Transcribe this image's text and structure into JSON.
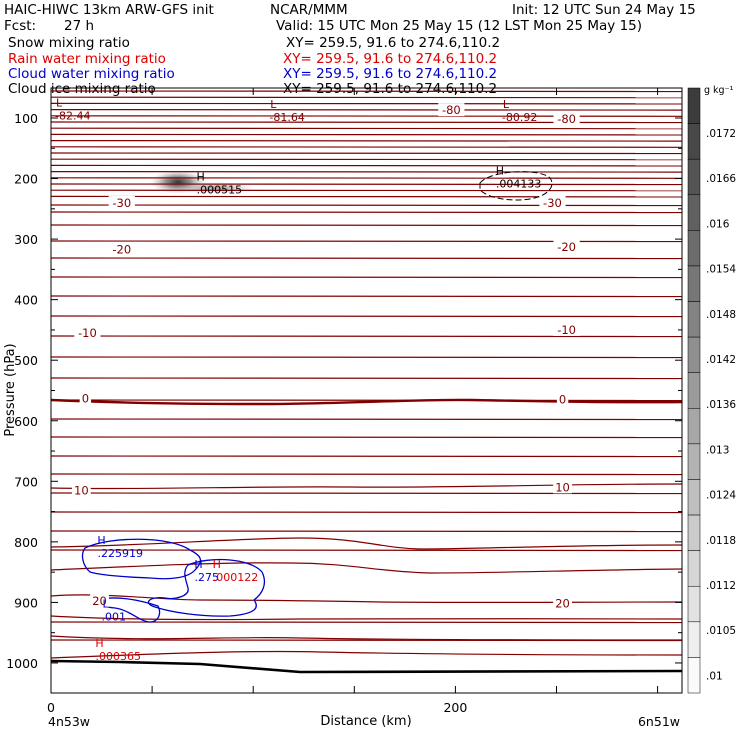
{
  "header": {
    "title": "HAIC-HIWC 13km ARW-GFS init",
    "center": "NCAR/MMM",
    "init": "Init: 12 UTC Sun 24 May 15",
    "fcst_label": "Fcst:",
    "fcst_value": "27 h",
    "valid": "Valid: 15 UTC Mon 25 May 15 (12 LST Mon 25 May 15)"
  },
  "fields": [
    {
      "name": "Snow mixing ratio",
      "xy": "XY= 259.5, 91.6 to 274.6,110.2",
      "color": "#000000"
    },
    {
      "name": "Rain water mixing ratio",
      "xy": "XY= 259.5, 91.6 to 274.6,110.2",
      "color": "#dd0000"
    },
    {
      "name": "Cloud water mixing ratio",
      "xy": "XY= 259.5, 91.6 to 274.6,110.2",
      "color": "#0000cc"
    },
    {
      "name": "Cloud ice mixing ratio",
      "xy": "XY= 259.5, 91.6 to 274.6,110.2",
      "color": "#000000"
    }
  ],
  "colorbar": {
    "unit_label": "g kg⁻¹",
    "ticks": [
      ".0172",
      ".0166",
      ".016",
      ".0154",
      ".0148",
      ".0142",
      ".0136",
      ".013",
      ".0124",
      ".0118",
      ".0112",
      ".0105",
      ".01"
    ]
  },
  "chart_data": {
    "type": "cross-section contour",
    "xlabel": "Distance (km)",
    "ylabel": "Pressure (hPa)",
    "xlim": [
      0,
      300
    ],
    "ylim": [
      1050,
      50
    ],
    "x_ticks": [
      0,
      200
    ],
    "y_ticks": [
      100,
      200,
      300,
      400,
      500,
      600,
      700,
      800,
      900,
      1000
    ],
    "x_endpoint_labels": [
      "4n53w",
      "6n51w"
    ],
    "temperature_labels": [
      {
        "text": "-80",
        "x": 198,
        "p": 87
      },
      {
        "text": "-80",
        "x": 255,
        "p": 102
      },
      {
        "text": "-30",
        "x": 35,
        "p": 240
      },
      {
        "text": "-30",
        "x": 248,
        "p": 240
      },
      {
        "text": "-20",
        "x": 35,
        "p": 317
      },
      {
        "text": "-20",
        "x": 255,
        "p": 313
      },
      {
        "text": "-10",
        "x": 18,
        "p": 455
      },
      {
        "text": "-10",
        "x": 255,
        "p": 450
      },
      {
        "text": "0",
        "x": 17,
        "p": 563
      },
      {
        "text": "0",
        "x": 253,
        "p": 565
      },
      {
        "text": "10",
        "x": 15,
        "p": 715
      },
      {
        "text": "10",
        "x": 253,
        "p": 710
      },
      {
        "text": "20",
        "x": 24,
        "p": 898
      },
      {
        "text": "20",
        "x": 253,
        "p": 902
      }
    ],
    "extrema_labels": [
      {
        "marker": "L",
        "value": "-82.44",
        "x": 2,
        "p": 88,
        "color": "#800000"
      },
      {
        "marker": "L",
        "value": "-81.64",
        "x": 108,
        "p": 90,
        "color": "#800000"
      },
      {
        "marker": "L",
        "value": "-80.92",
        "x": 223,
        "p": 90,
        "color": "#800000"
      },
      {
        "marker": "H",
        "value": ".000515",
        "x": 72,
        "p": 210,
        "color": "#000000"
      },
      {
        "marker": "H",
        "value": ".004133",
        "x": 220,
        "p": 200,
        "color": "#000000"
      },
      {
        "marker": "H",
        "value": ".225919",
        "x": 23,
        "p": 810,
        "color": "#0000cc"
      },
      {
        "marker": "H",
        "value": ".275",
        "x": 71,
        "p": 850,
        "color": "#0000cc"
      },
      {
        "marker": "H",
        "value": ".000122",
        "x": 80,
        "p": 850,
        "color": "#dd0000"
      },
      {
        "marker": "H",
        "value": ".000365",
        "x": 22,
        "p": 980,
        "color": "#dd0000"
      },
      {
        "marker": "L",
        "value": ".001",
        "x": 25,
        "p": 915,
        "color": "#0000cc"
      }
    ],
    "shaded_snow_max": {
      "x": 62,
      "p": 200,
      "approx_value": 0.0172
    }
  }
}
